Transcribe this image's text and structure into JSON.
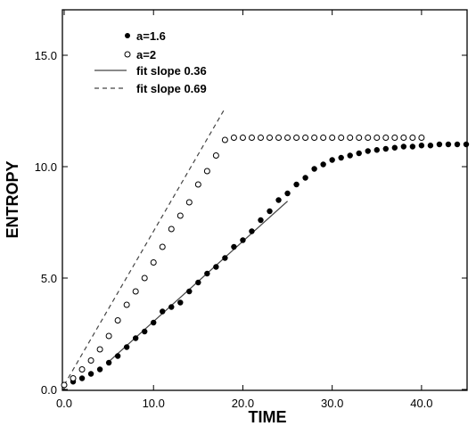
{
  "chart_data": {
    "type": "scatter",
    "title": "",
    "xlabel": "TIME",
    "ylabel": "ENTROPY",
    "xlim": [
      0,
      45
    ],
    "ylim": [
      0,
      17
    ],
    "x_ticks": [
      0,
      10,
      20,
      30,
      40
    ],
    "x_tick_labels": [
      "0.0",
      "10.0",
      "20.0",
      "30.0",
      "40.0"
    ],
    "y_ticks": [
      0,
      5,
      10,
      15
    ],
    "y_tick_labels": [
      "0.0",
      "5.0",
      "10.0",
      "15.0"
    ],
    "grid": false,
    "legend_position": "top-left",
    "series": [
      {
        "name": "a=1.6",
        "kind": "scatter",
        "marker": "filled-circle",
        "x": [
          0,
          1,
          2,
          3,
          4,
          5,
          6,
          7,
          8,
          9,
          10,
          11,
          12,
          13,
          14,
          15,
          16,
          17,
          18,
          19,
          20,
          21,
          22,
          23,
          24,
          25,
          26,
          27,
          28,
          29,
          30,
          31,
          32,
          33,
          34,
          35,
          36,
          37,
          38,
          39,
          40,
          41,
          42,
          43,
          44,
          45
        ],
        "values": [
          0.2,
          0.35,
          0.5,
          0.7,
          0.9,
          1.2,
          1.5,
          1.9,
          2.3,
          2.6,
          3.0,
          3.5,
          3.7,
          3.9,
          4.4,
          4.8,
          5.2,
          5.5,
          5.9,
          6.4,
          6.7,
          7.1,
          7.6,
          8.0,
          8.5,
          8.8,
          9.2,
          9.5,
          9.9,
          10.1,
          10.3,
          10.4,
          10.5,
          10.6,
          10.7,
          10.75,
          10.8,
          10.85,
          10.9,
          10.9,
          10.95,
          10.95,
          11.0,
          11.0,
          11.0,
          11.0
        ]
      },
      {
        "name": "a=2",
        "kind": "scatter",
        "marker": "open-circle",
        "x": [
          0,
          1,
          2,
          3,
          4,
          5,
          6,
          7,
          8,
          9,
          10,
          11,
          12,
          13,
          14,
          15,
          16,
          17,
          18,
          19,
          20,
          21,
          22,
          23,
          24,
          25,
          26,
          27,
          28,
          29,
          30,
          31,
          32,
          33,
          34,
          35,
          36,
          37,
          38,
          39,
          40
        ],
        "values": [
          0.2,
          0.5,
          0.9,
          1.3,
          1.8,
          2.4,
          3.1,
          3.8,
          4.4,
          5.0,
          5.7,
          6.4,
          7.2,
          7.8,
          8.4,
          9.2,
          9.8,
          10.5,
          11.2,
          11.3,
          11.3,
          11.3,
          11.3,
          11.3,
          11.3,
          11.3,
          11.3,
          11.3,
          11.3,
          11.3,
          11.3,
          11.3,
          11.3,
          11.3,
          11.3,
          11.3,
          11.3,
          11.3,
          11.3,
          11.3,
          11.3
        ]
      },
      {
        "name": "fit slope 0.36",
        "kind": "line",
        "style": "solid",
        "x": [
          5,
          25
        ],
        "values": [
          1.25,
          8.45
        ]
      },
      {
        "name": "fit slope 0.69",
        "kind": "line",
        "style": "dashed",
        "x": [
          0,
          18
        ],
        "values": [
          0.2,
          12.62
        ]
      }
    ]
  }
}
